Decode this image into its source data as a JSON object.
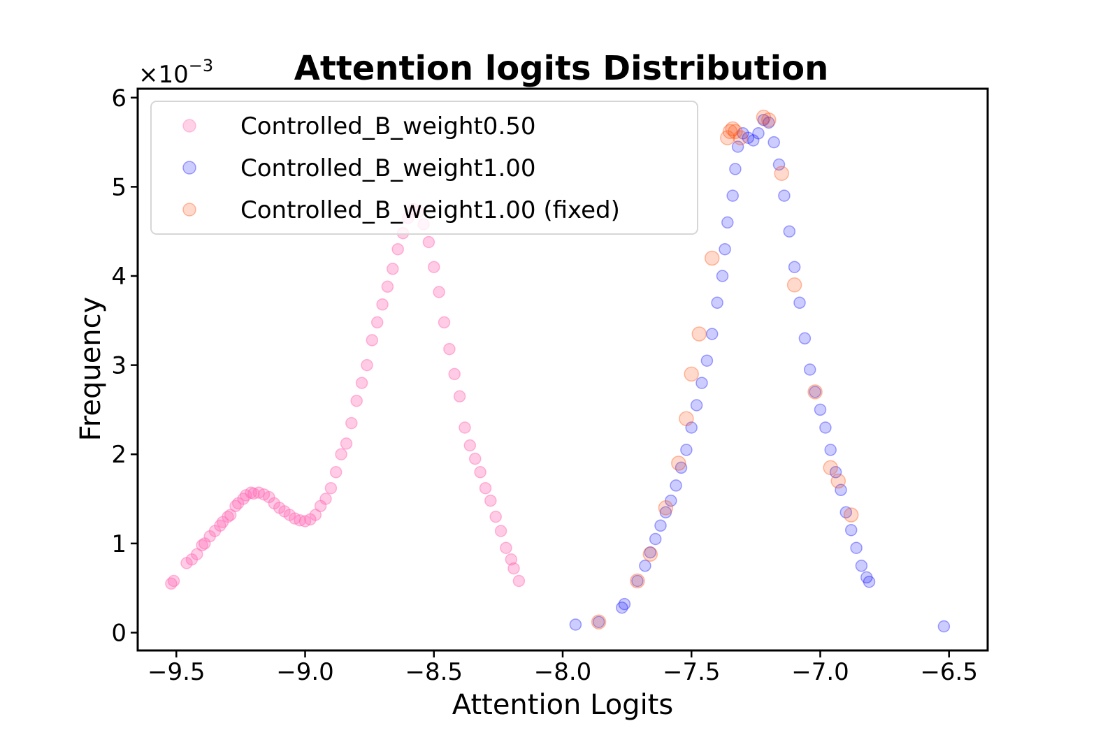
{
  "chart_data": {
    "type": "scatter",
    "title": "Attention logits Distribution",
    "xlabel": "Attention Logits",
    "ylabel": "Frequency",
    "y_offset_label": "×10",
    "y_offset_exponent": "−3",
    "xlim": [
      -9.65,
      -6.35
    ],
    "ylim": [
      -0.2,
      6.1
    ],
    "xticks": [
      -9.5,
      -9.0,
      -8.5,
      -8.0,
      -7.5,
      -7.0,
      -6.5
    ],
    "xtick_labels": [
      "−9.5",
      "−9.0",
      "−8.5",
      "−8.0",
      "−7.5",
      "−7.0",
      "−6.5"
    ],
    "yticks": [
      0,
      1,
      2,
      3,
      4,
      5,
      6
    ],
    "ytick_labels": [
      "0",
      "1",
      "2",
      "3",
      "4",
      "5",
      "6"
    ],
    "legend_position": "top-left",
    "series": [
      {
        "name": "Controlled_B_weight0.50",
        "color": "#ff69b4",
        "points": [
          [
            -9.52,
            0.55
          ],
          [
            -9.51,
            0.58
          ],
          [
            -9.46,
            0.78
          ],
          [
            -9.44,
            0.82
          ],
          [
            -9.42,
            0.88
          ],
          [
            -9.4,
            0.98
          ],
          [
            -9.39,
            1.0
          ],
          [
            -9.37,
            1.08
          ],
          [
            -9.35,
            1.14
          ],
          [
            -9.33,
            1.2
          ],
          [
            -9.32,
            1.24
          ],
          [
            -9.3,
            1.3
          ],
          [
            -9.29,
            1.32
          ],
          [
            -9.27,
            1.42
          ],
          [
            -9.26,
            1.45
          ],
          [
            -9.24,
            1.5
          ],
          [
            -9.23,
            1.54
          ],
          [
            -9.21,
            1.57
          ],
          [
            -9.2,
            1.56
          ],
          [
            -9.18,
            1.57
          ],
          [
            -9.16,
            1.55
          ],
          [
            -9.14,
            1.52
          ],
          [
            -9.12,
            1.45
          ],
          [
            -9.1,
            1.4
          ],
          [
            -9.08,
            1.36
          ],
          [
            -9.06,
            1.32
          ],
          [
            -9.04,
            1.28
          ],
          [
            -9.02,
            1.26
          ],
          [
            -9.0,
            1.25
          ],
          [
            -8.98,
            1.27
          ],
          [
            -8.96,
            1.32
          ],
          [
            -8.94,
            1.42
          ],
          [
            -8.92,
            1.5
          ],
          [
            -8.9,
            1.62
          ],
          [
            -8.88,
            1.8
          ],
          [
            -8.86,
            2.0
          ],
          [
            -8.84,
            2.12
          ],
          [
            -8.82,
            2.35
          ],
          [
            -8.8,
            2.6
          ],
          [
            -8.78,
            2.8
          ],
          [
            -8.76,
            3.0
          ],
          [
            -8.74,
            3.28
          ],
          [
            -8.72,
            3.48
          ],
          [
            -8.7,
            3.68
          ],
          [
            -8.68,
            3.88
          ],
          [
            -8.66,
            4.08
          ],
          [
            -8.64,
            4.3
          ],
          [
            -8.62,
            4.48
          ],
          [
            -8.6,
            4.65
          ],
          [
            -8.58,
            4.75
          ],
          [
            -8.56,
            4.72
          ],
          [
            -8.54,
            4.58
          ],
          [
            -8.52,
            4.38
          ],
          [
            -8.5,
            4.1
          ],
          [
            -8.48,
            3.82
          ],
          [
            -8.46,
            3.48
          ],
          [
            -8.44,
            3.18
          ],
          [
            -8.42,
            2.9
          ],
          [
            -8.4,
            2.65
          ],
          [
            -8.38,
            2.3
          ],
          [
            -8.36,
            2.1
          ],
          [
            -8.34,
            1.95
          ],
          [
            -8.32,
            1.8
          ],
          [
            -8.3,
            1.62
          ],
          [
            -8.28,
            1.48
          ],
          [
            -8.26,
            1.3
          ],
          [
            -8.24,
            1.14
          ],
          [
            -8.22,
            0.95
          ],
          [
            -8.2,
            0.82
          ],
          [
            -8.19,
            0.72
          ],
          [
            -8.17,
            0.58
          ]
        ]
      },
      {
        "name": "Controlled_B_weight1.00",
        "color": "#0000ff",
        "points": [
          [
            -7.95,
            0.09
          ],
          [
            -7.86,
            0.12
          ],
          [
            -7.77,
            0.28
          ],
          [
            -7.76,
            0.32
          ],
          [
            -7.71,
            0.58
          ],
          [
            -7.68,
            0.75
          ],
          [
            -7.66,
            0.9
          ],
          [
            -7.64,
            1.05
          ],
          [
            -7.62,
            1.2
          ],
          [
            -7.6,
            1.35
          ],
          [
            -7.58,
            1.48
          ],
          [
            -7.56,
            1.65
          ],
          [
            -7.54,
            1.85
          ],
          [
            -7.52,
            2.05
          ],
          [
            -7.5,
            2.3
          ],
          [
            -7.48,
            2.55
          ],
          [
            -7.46,
            2.8
          ],
          [
            -7.44,
            3.05
          ],
          [
            -7.42,
            3.35
          ],
          [
            -7.4,
            3.7
          ],
          [
            -7.38,
            4.0
          ],
          [
            -7.37,
            4.3
          ],
          [
            -7.36,
            4.6
          ],
          [
            -7.34,
            4.9
          ],
          [
            -7.33,
            5.2
          ],
          [
            -7.32,
            5.45
          ],
          [
            -7.3,
            5.6
          ],
          [
            -7.28,
            5.55
          ],
          [
            -7.26,
            5.52
          ],
          [
            -7.24,
            5.6
          ],
          [
            -7.22,
            5.75
          ],
          [
            -7.2,
            5.72
          ],
          [
            -7.18,
            5.5
          ],
          [
            -7.16,
            5.25
          ],
          [
            -7.14,
            4.9
          ],
          [
            -7.12,
            4.5
          ],
          [
            -7.1,
            4.1
          ],
          [
            -7.08,
            3.7
          ],
          [
            -7.06,
            3.3
          ],
          [
            -7.04,
            2.95
          ],
          [
            -7.02,
            2.7
          ],
          [
            -7.0,
            2.5
          ],
          [
            -6.98,
            2.3
          ],
          [
            -6.96,
            2.05
          ],
          [
            -6.94,
            1.8
          ],
          [
            -6.92,
            1.6
          ],
          [
            -6.9,
            1.35
          ],
          [
            -6.88,
            1.15
          ],
          [
            -6.86,
            0.95
          ],
          [
            -6.84,
            0.75
          ],
          [
            -6.82,
            0.62
          ],
          [
            -6.81,
            0.57
          ],
          [
            -6.52,
            0.07
          ]
        ]
      },
      {
        "name": "Controlled_B_weight1.00 (fixed)",
        "color": "#ff4500",
        "points": [
          [
            -7.86,
            0.12
          ],
          [
            -7.71,
            0.58
          ],
          [
            -7.66,
            0.88
          ],
          [
            -7.6,
            1.4
          ],
          [
            -7.55,
            1.9
          ],
          [
            -7.52,
            2.4
          ],
          [
            -7.5,
            2.9
          ],
          [
            -7.47,
            3.35
          ],
          [
            -7.42,
            4.2
          ],
          [
            -7.36,
            5.55
          ],
          [
            -7.35,
            5.62
          ],
          [
            -7.34,
            5.65
          ],
          [
            -7.33,
            5.62
          ],
          [
            -7.31,
            5.55
          ],
          [
            -7.22,
            5.78
          ],
          [
            -7.2,
            5.75
          ],
          [
            -7.15,
            5.15
          ],
          [
            -7.1,
            3.9
          ],
          [
            -7.02,
            2.7
          ],
          [
            -6.96,
            1.85
          ],
          [
            -6.93,
            1.7
          ],
          [
            -6.88,
            1.32
          ]
        ]
      }
    ]
  }
}
